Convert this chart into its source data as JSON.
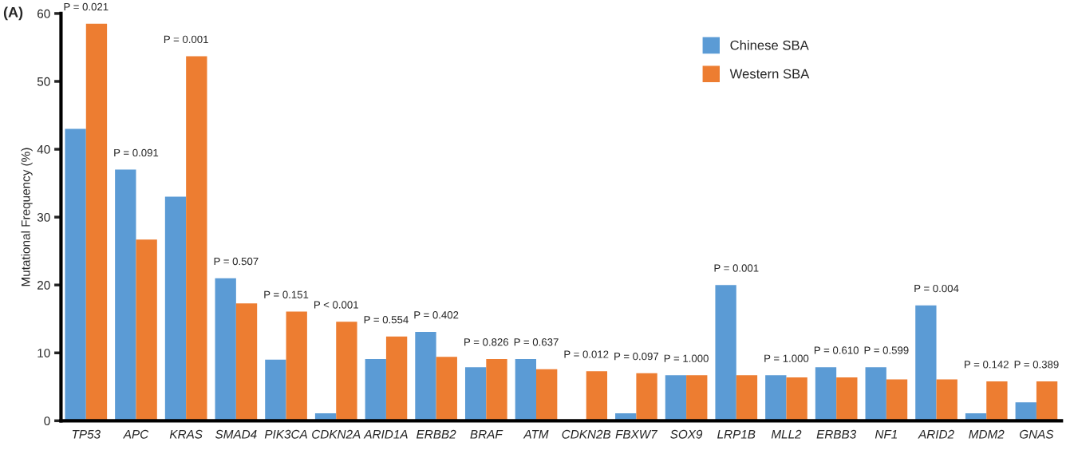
{
  "chart_data": {
    "type": "bar",
    "ylabel": "Mutational Frequency (%)",
    "categories": [
      "TP53",
      "APC",
      "KRAS",
      "SMAD4",
      "PIK3CA",
      "CDKN2A",
      "ARID1A",
      "ERBB2",
      "BRAF",
      "ATM",
      "CDKN2B",
      "FBXW7",
      "SOX9",
      "LRP1B",
      "MLL2",
      "ERBB3",
      "NF1",
      "ARID2",
      "MDM2",
      "GNAS"
    ],
    "series": [
      {
        "name": "Chinese SBA",
        "color": "#5b9bd5",
        "values": [
          43,
          37,
          33,
          21,
          9,
          1.1,
          9.1,
          13.1,
          7.9,
          9.1,
          0,
          1.1,
          6.7,
          20,
          6.7,
          7.9,
          7.9,
          17,
          1.1,
          2.7
        ]
      },
      {
        "name": "Western SBA",
        "color": "#ed7d31",
        "values": [
          58.5,
          26.7,
          53.7,
          17.3,
          16.1,
          14.6,
          12.4,
          9.4,
          9.1,
          7.6,
          7.3,
          7.0,
          6.7,
          6.7,
          6.4,
          6.4,
          6.1,
          6.1,
          5.8,
          5.8
        ]
      }
    ],
    "ylim": [
      0,
      60
    ],
    "yticks": [
      0,
      10,
      20,
      30,
      40,
      50,
      60
    ],
    "grid": false,
    "legend": "top right",
    "annotations": [
      "(A)",
      {
        "text": "P = 0.021",
        "x": "TP53",
        "y": 58.5
      },
      {
        "text": "P = 0.091",
        "x": "APC",
        "y": 37
      },
      {
        "text": "P = 0.001",
        "x": "KRAS",
        "y": 53.7
      },
      {
        "text": "P = 0.507",
        "x": "SMAD4",
        "y": 21
      },
      {
        "text": "P = 0.151",
        "x": "PIK3CA",
        "y": 16.1
      },
      {
        "text": "P < 0.001",
        "x": "CDKN2A",
        "y": 14.6
      },
      {
        "text": "P = 0.554",
        "x": "ARID1A",
        "y": 12.4
      },
      {
        "text": "P = 0.402",
        "x": "ERBB2",
        "y": 13.1
      },
      {
        "text": "P = 0.826",
        "x": "BRAF",
        "y": 9.1
      },
      {
        "text": "P = 0.637",
        "x": "ATM",
        "y": 9.1
      },
      {
        "text": "P = 0.012",
        "x": "CDKN2B",
        "y": 7.3
      },
      {
        "text": "P = 0.097",
        "x": "FBXW7",
        "y": 7.0
      },
      {
        "text": "P = 1.000",
        "x": "SOX9",
        "y": 6.7
      },
      {
        "text": "P = 0.001",
        "x": "LRP1B",
        "y": 20
      },
      {
        "text": "P = 1.000",
        "x": "MLL2",
        "y": 6.7
      },
      {
        "text": "P = 0.610",
        "x": "ERBB3",
        "y": 7.9
      },
      {
        "text": "P = 0.599",
        "x": "NF1",
        "y": 7.9
      },
      {
        "text": "P = 0.004",
        "x": "ARID2",
        "y": 17
      },
      {
        "text": "P = 0.142",
        "x": "MDM2",
        "y": 5.8
      },
      {
        "text": "P = 0.389",
        "x": "GNAS",
        "y": 5.8
      }
    ]
  }
}
